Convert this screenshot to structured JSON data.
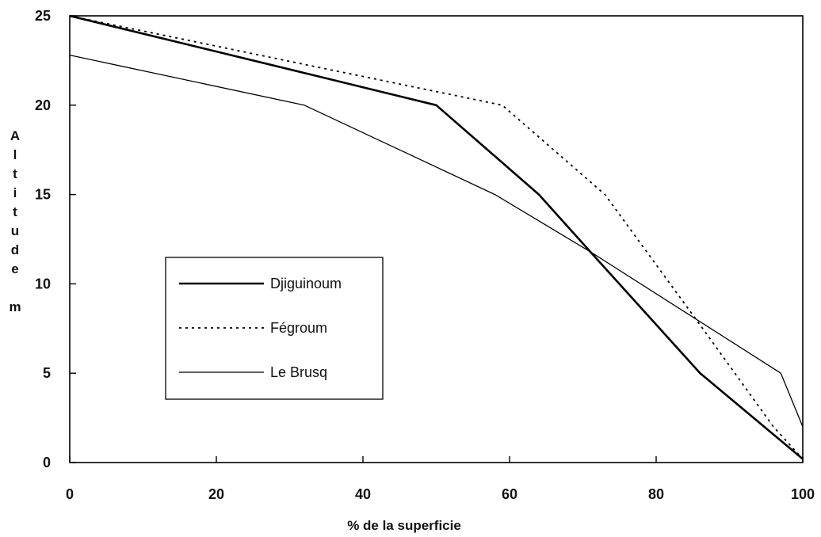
{
  "chart_data": {
    "type": "line",
    "title": "",
    "xlabel": "% de la superficie",
    "ylabel_letters": [
      "A",
      "l",
      "t",
      "i",
      "t",
      "u",
      "d",
      "e",
      "m"
    ],
    "xlim": [
      0,
      100
    ],
    "ylim": [
      0,
      25
    ],
    "x_ticks": [
      0,
      20,
      40,
      60,
      80,
      100
    ],
    "y_ticks": [
      0,
      5,
      10,
      15,
      20,
      25
    ],
    "grid": false,
    "legend_position": "center-left",
    "series": [
      {
        "name": "Djiguinoum",
        "style": "thick-solid",
        "color": "#000000",
        "points": [
          [
            0,
            25
          ],
          [
            33,
            21.7
          ],
          [
            50,
            20
          ],
          [
            64,
            15
          ],
          [
            71,
            11.8
          ],
          [
            86,
            5
          ],
          [
            100,
            0.2
          ]
        ]
      },
      {
        "name": "Fégroum",
        "style": "dotted",
        "color": "#000000",
        "points": [
          [
            0,
            25
          ],
          [
            33,
            22.2
          ],
          [
            59,
            20
          ],
          [
            73,
            15
          ],
          [
            86,
            7.7
          ],
          [
            96,
            2
          ],
          [
            100,
            0.2
          ]
        ]
      },
      {
        "name": "Le Brusq",
        "style": "thin-solid",
        "color": "#000000",
        "points": [
          [
            0,
            22.8
          ],
          [
            32,
            20
          ],
          [
            58,
            15
          ],
          [
            71,
            11.8
          ],
          [
            97,
            5
          ],
          [
            100,
            2
          ]
        ]
      }
    ]
  }
}
